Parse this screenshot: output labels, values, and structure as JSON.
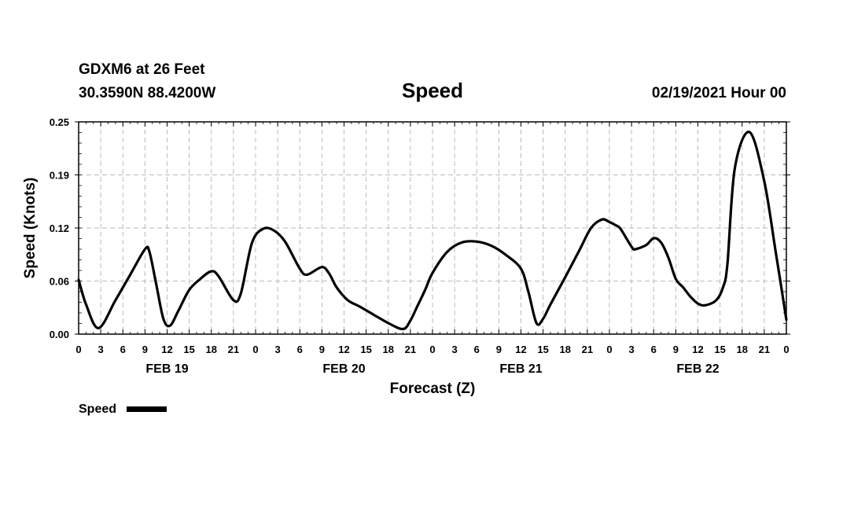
{
  "header": {
    "station": "GDXM6 at 26 Feet",
    "coords": "30.3590N 88.4200W",
    "datetime": "02/19/2021 Hour 00"
  },
  "chart_data": {
    "type": "line",
    "title": "Speed",
    "xlabel": "Forecast (Z)",
    "ylabel": "Speed (Knots)",
    "ylim": [
      0,
      0.25
    ],
    "xlim": [
      0,
      96
    ],
    "y_ticks": [
      "0.00",
      "0.06",
      "0.12",
      "0.19",
      "0.25"
    ],
    "y_tick_values": [
      0,
      0.0625,
      0.125,
      0.1875,
      0.25
    ],
    "x_ticks": [
      "0",
      "3",
      "6",
      "9",
      "12",
      "15",
      "18",
      "21",
      "0",
      "3",
      "6",
      "9",
      "12",
      "15",
      "18",
      "21",
      "0",
      "3",
      "6",
      "9",
      "12",
      "15",
      "18",
      "21",
      "0",
      "3",
      "6",
      "9",
      "12",
      "15",
      "18",
      "21",
      "0"
    ],
    "x_tick_step_hours": 3,
    "days": [
      {
        "label": "FEB 19",
        "hour": 12
      },
      {
        "label": "FEB 20",
        "hour": 36
      },
      {
        "label": "FEB 21",
        "hour": 60
      },
      {
        "label": "FEB 22",
        "hour": 84
      }
    ],
    "grid": true,
    "legend": {
      "label": "Speed",
      "position": "bottom-left"
    },
    "series": [
      {
        "name": "Speed",
        "x": [
          0,
          1,
          2.7,
          5,
          7,
          9,
          9.6,
          10.5,
          11.5,
          12.4,
          13.5,
          15,
          16.5,
          18,
          19,
          21,
          22,
          23.5,
          25,
          26.5,
          28,
          30,
          31,
          33,
          34,
          35,
          36.5,
          38,
          40,
          42,
          44,
          45,
          46,
          47,
          48,
          50,
          52,
          54,
          56,
          58,
          60,
          61,
          62.1,
          63,
          64,
          66,
          68,
          69.5,
          71,
          72,
          72.9,
          73.5,
          75,
          75.5,
          77,
          78,
          79,
          80,
          81,
          82,
          83,
          84,
          85,
          86.5,
          87.4,
          88,
          89,
          91,
          93,
          94.5,
          96
        ],
        "y": [
          0.064,
          0.035,
          0.007,
          0.04,
          0.07,
          0.1,
          0.097,
          0.06,
          0.018,
          0.01,
          0.027,
          0.052,
          0.065,
          0.074,
          0.068,
          0.04,
          0.048,
          0.107,
          0.124,
          0.122,
          0.109,
          0.077,
          0.07,
          0.079,
          0.071,
          0.055,
          0.04,
          0.033,
          0.023,
          0.013,
          0.006,
          0.016,
          0.034,
          0.052,
          0.072,
          0.097,
          0.108,
          0.109,
          0.104,
          0.093,
          0.077,
          0.05,
          0.013,
          0.018,
          0.035,
          0.067,
          0.1,
          0.125,
          0.135,
          0.132,
          0.128,
          0.124,
          0.103,
          0.1,
          0.105,
          0.113,
          0.108,
          0.09,
          0.065,
          0.055,
          0.044,
          0.036,
          0.034,
          0.04,
          0.055,
          0.082,
          0.195,
          0.238,
          0.18,
          0.1,
          0.017
        ]
      }
    ]
  }
}
